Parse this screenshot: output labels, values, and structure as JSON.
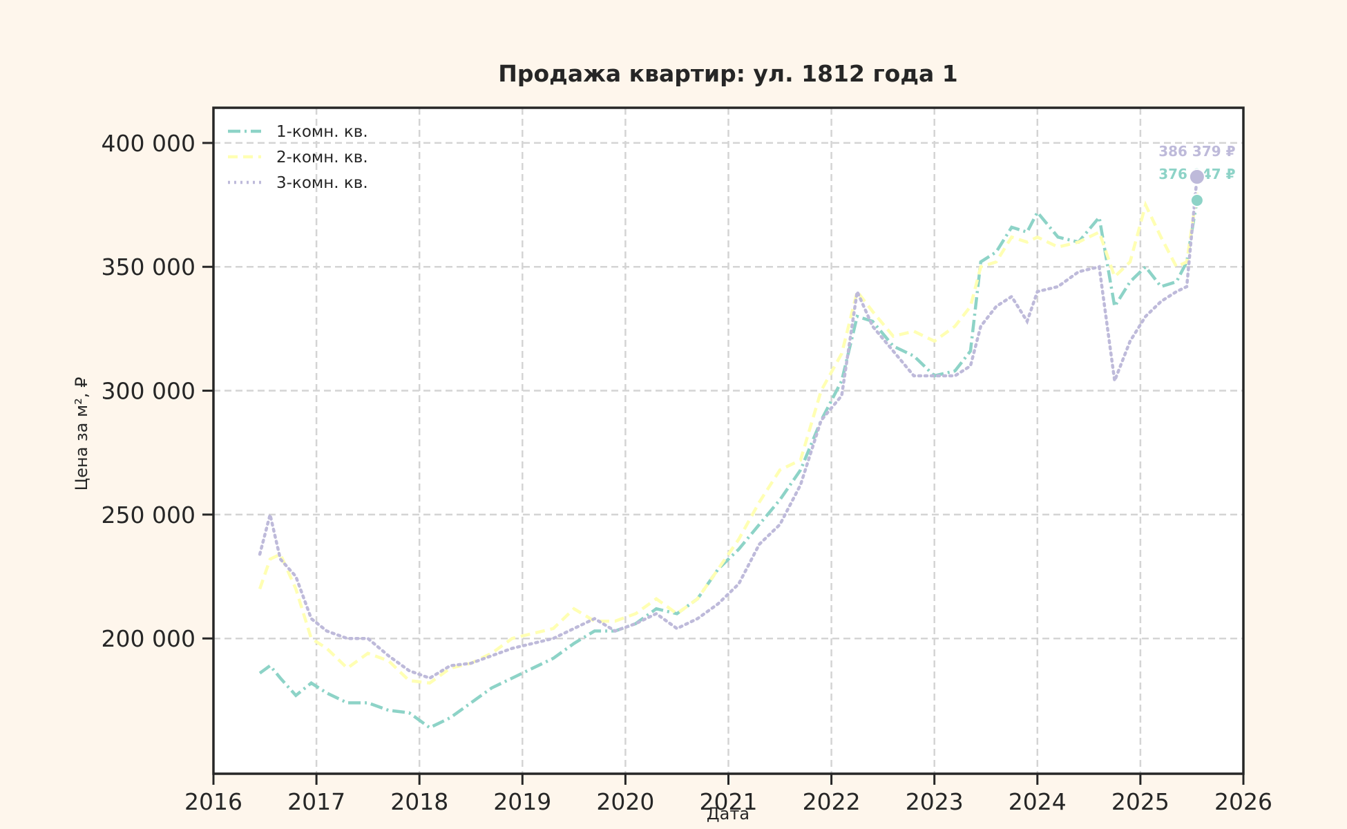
{
  "chart_data": {
    "type": "line",
    "title": "Продажа квартир: ул. 1812 года 1",
    "xlabel": "Дата",
    "ylabel": "Цена за м², ₽",
    "xlim": [
      2016,
      2026
    ],
    "ylim": [
      145400,
      414200
    ],
    "x_ticks": [
      "2016",
      "2017",
      "2018",
      "2019",
      "2020",
      "2021",
      "2022",
      "2023",
      "2024",
      "2025",
      "2026"
    ],
    "y_ticks": [
      {
        "value": 200000,
        "label": "200 000"
      },
      {
        "value": 250000,
        "label": "250 000"
      },
      {
        "value": 300000,
        "label": "300 000"
      },
      {
        "value": 350000,
        "label": "350 000"
      },
      {
        "value": 400000,
        "label": "400 000"
      }
    ],
    "grid": true,
    "legend_position": "upper left",
    "series": [
      {
        "name": "1-комн. кв.",
        "color": "#8dd3c7",
        "style": "dashdot",
        "x": [
          2016.45,
          2016.55,
          2016.65,
          2016.8,
          2016.95,
          2017.1,
          2017.3,
          2017.5,
          2017.7,
          2017.9,
          2018.1,
          2018.3,
          2018.5,
          2018.7,
          2018.9,
          2019.1,
          2019.3,
          2019.5,
          2019.7,
          2019.9,
          2020.1,
          2020.3,
          2020.5,
          2020.7,
          2020.9,
          2021.1,
          2021.3,
          2021.5,
          2021.7,
          2021.9,
          2022.1,
          2022.25,
          2022.4,
          2022.6,
          2022.8,
          2023.0,
          2023.2,
          2023.35,
          2023.45,
          2023.6,
          2023.75,
          2023.9,
          2024.0,
          2024.2,
          2024.4,
          2024.6,
          2024.75,
          2024.9,
          2025.05,
          2025.2,
          2025.35,
          2025.45,
          2025.55
        ],
        "values": [
          186000,
          189000,
          184000,
          177000,
          182000,
          178000,
          174000,
          174000,
          171000,
          170000,
          164000,
          168000,
          174000,
          180000,
          184000,
          188000,
          192000,
          198000,
          203000,
          203000,
          206000,
          212000,
          210000,
          216000,
          228000,
          236000,
          246000,
          256000,
          268000,
          288000,
          304000,
          330000,
          328000,
          318000,
          314000,
          306000,
          308000,
          316000,
          352000,
          356000,
          366000,
          364000,
          372000,
          362000,
          360000,
          370000,
          334000,
          344000,
          350000,
          342000,
          344000,
          352000,
          376947
        ]
      },
      {
        "name": "2-комн. кв.",
        "color": "#ffffb3",
        "style": "dashed",
        "x": [
          2016.45,
          2016.55,
          2016.65,
          2016.8,
          2016.95,
          2017.1,
          2017.3,
          2017.5,
          2017.7,
          2017.9,
          2018.1,
          2018.3,
          2018.5,
          2018.7,
          2018.9,
          2019.1,
          2019.3,
          2019.5,
          2019.7,
          2019.9,
          2020.1,
          2020.3,
          2020.5,
          2020.7,
          2020.9,
          2021.1,
          2021.3,
          2021.5,
          2021.7,
          2021.9,
          2022.1,
          2022.25,
          2022.4,
          2022.6,
          2022.8,
          2023.0,
          2023.2,
          2023.35,
          2023.45,
          2023.6,
          2023.75,
          2023.9,
          2024.0,
          2024.2,
          2024.4,
          2024.6,
          2024.75,
          2024.9,
          2025.05,
          2025.2,
          2025.35,
          2025.45,
          2025.55
        ],
        "values": [
          220000,
          232000,
          234000,
          220000,
          200000,
          196000,
          188000,
          194000,
          191000,
          183000,
          182000,
          188000,
          190000,
          194000,
          200000,
          202000,
          204000,
          212000,
          207000,
          207000,
          210000,
          216000,
          210000,
          216000,
          228000,
          240000,
          255000,
          268000,
          272000,
          300000,
          315000,
          340000,
          332000,
          322000,
          324000,
          320000,
          326000,
          334000,
          350000,
          352000,
          362000,
          360000,
          362000,
          358000,
          360000,
          364000,
          346000,
          352000,
          375000,
          362000,
          350000,
          352000,
          380000
        ]
      },
      {
        "name": "3-комн. кв.",
        "color": "#bebada",
        "style": "dotted",
        "x": [
          2016.45,
          2016.55,
          2016.65,
          2016.8,
          2016.95,
          2017.1,
          2017.3,
          2017.5,
          2017.7,
          2017.9,
          2018.1,
          2018.3,
          2018.5,
          2018.7,
          2018.9,
          2019.1,
          2019.3,
          2019.5,
          2019.7,
          2019.9,
          2020.1,
          2020.3,
          2020.5,
          2020.7,
          2020.9,
          2021.1,
          2021.3,
          2021.5,
          2021.7,
          2021.9,
          2022.1,
          2022.25,
          2022.4,
          2022.6,
          2022.8,
          2023.0,
          2023.2,
          2023.35,
          2023.45,
          2023.6,
          2023.75,
          2023.9,
          2024.0,
          2024.2,
          2024.4,
          2024.6,
          2024.75,
          2024.9,
          2025.05,
          2025.2,
          2025.35,
          2025.45,
          2025.55
        ],
        "values": [
          234000,
          250000,
          232000,
          225000,
          208000,
          203000,
          200000,
          200000,
          193000,
          187000,
          184000,
          189000,
          190000,
          193000,
          196000,
          198000,
          200000,
          204000,
          208000,
          203000,
          206000,
          210000,
          204000,
          208000,
          214000,
          222000,
          238000,
          246000,
          262000,
          288000,
          298000,
          340000,
          326000,
          316000,
          306000,
          306000,
          306000,
          310000,
          326000,
          334000,
          338000,
          328000,
          340000,
          342000,
          348000,
          350000,
          304000,
          320000,
          330000,
          336000,
          340000,
          342000,
          386379
        ]
      }
    ],
    "annotations": [
      {
        "series": "3-комн. кв.",
        "label": "386 379 ₽",
        "x": 2025.55,
        "y": 386379,
        "color": "#bebada"
      },
      {
        "series": "1-комн. кв.",
        "label": "376 947 ₽",
        "x": 2025.55,
        "y": 376947,
        "color": "#8dd3c7"
      }
    ]
  }
}
